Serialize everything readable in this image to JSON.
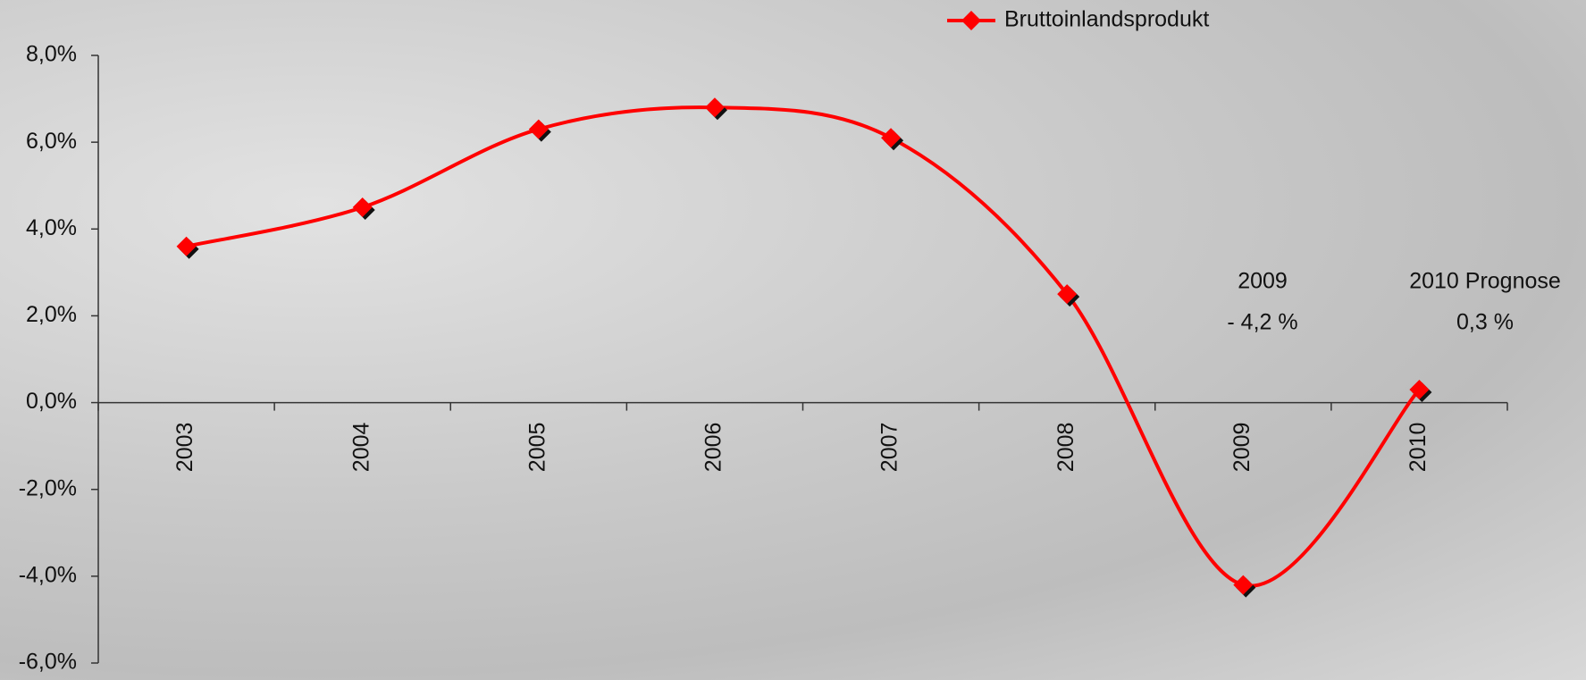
{
  "chart_data": {
    "type": "line",
    "categories": [
      "2003",
      "2004",
      "2005",
      "2006",
      "2007",
      "2008",
      "2009",
      "2010"
    ],
    "series": [
      {
        "name": "Bruttoinlandsprodukt",
        "color": "#ff0000",
        "values": [
          3.6,
          4.5,
          6.3,
          6.8,
          6.1,
          2.5,
          -4.2,
          0.3
        ]
      }
    ],
    "ylim": [
      -6,
      8
    ],
    "yticks": [
      {
        "value": -6,
        "label": "-6,0%"
      },
      {
        "value": -4,
        "label": "-4,0%"
      },
      {
        "value": -2,
        "label": "-2,0%"
      },
      {
        "value": 0,
        "label": "0,0%"
      },
      {
        "value": 2,
        "label": "2,0%"
      },
      {
        "value": 4,
        "label": "4,0%"
      },
      {
        "value": 6,
        "label": "6,0%"
      },
      {
        "value": 8,
        "label": "8,0%"
      }
    ],
    "annotations": [
      "2009",
      "- 4,2 %",
      "2010 Prognose",
      "0,3 %"
    ],
    "legend": "top"
  }
}
